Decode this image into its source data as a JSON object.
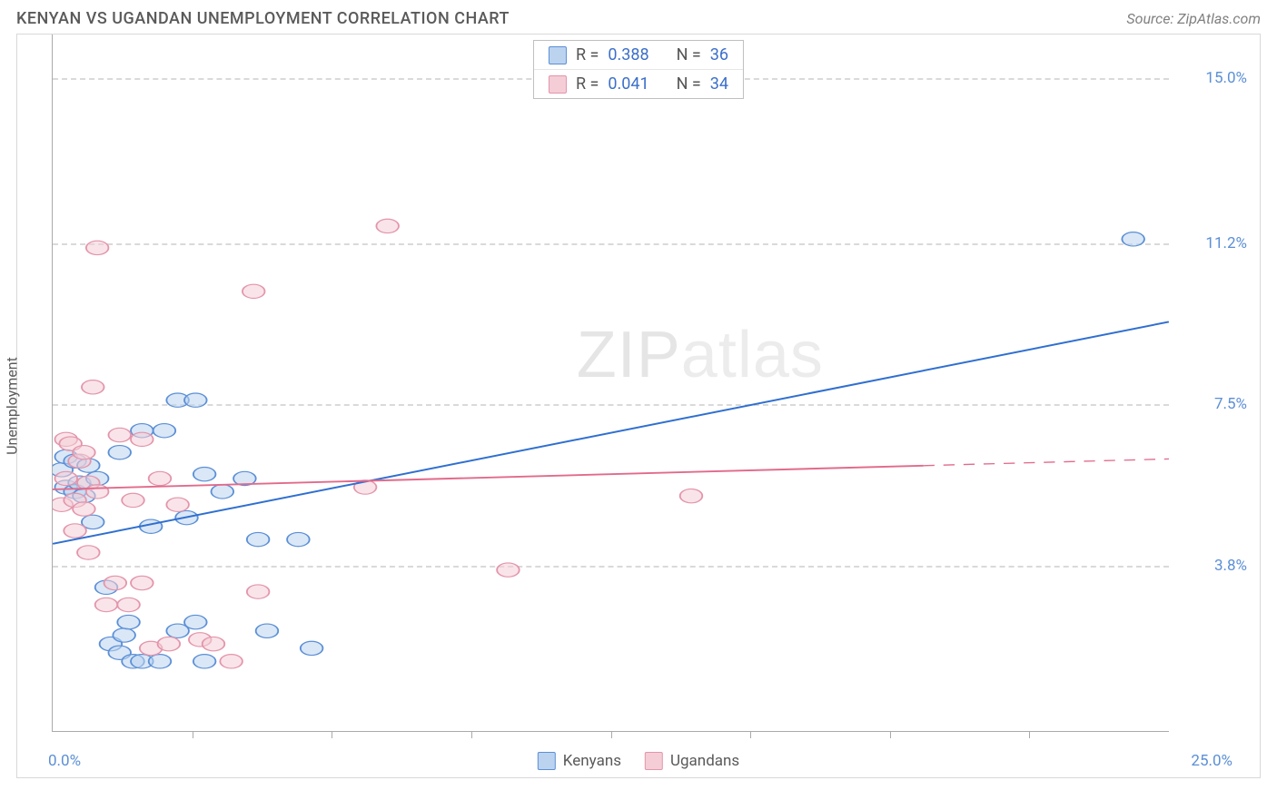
{
  "title": "KENYAN VS UGANDAN UNEMPLOYMENT CORRELATION CHART",
  "source_label": "Source: ZipAtlas.com",
  "ylabel": "Unemployment",
  "watermark_bold": "ZIP",
  "watermark_thin": "atlas",
  "chart": {
    "type": "scatter",
    "xlim": [
      0,
      25
    ],
    "ylim": [
      0,
      16
    ],
    "x_min_label": "0.0%",
    "x_max_label": "25.0%",
    "x_tick_positions_pct": [
      12.5,
      25,
      37.5,
      50,
      62.5,
      75,
      87.5
    ],
    "y_gridlines": [
      {
        "value": 3.8,
        "label": "3.8%"
      },
      {
        "value": 7.5,
        "label": "7.5%"
      },
      {
        "value": 11.2,
        "label": "11.2%"
      },
      {
        "value": 15.0,
        "label": "15.0%"
      }
    ],
    "background_color": "#ffffff",
    "grid_color": "#d9d9d9",
    "axis_color": "#aaaaaa",
    "label_color": "#5b8fd6",
    "marker_radius": 10,
    "marker_opacity": 0.55,
    "line_width": 2.5,
    "series": [
      {
        "name": "Kenyans",
        "color_stroke": "#5b8fd6",
        "color_fill": "#bcd3ef",
        "line_color": "#2f6fd0",
        "R": "0.388",
        "N": "36",
        "trend": {
          "x1": 0,
          "y1": 4.3,
          "x2": 25,
          "y2": 9.4,
          "solid_to_x": 25
        },
        "points": [
          [
            0.2,
            6.0
          ],
          [
            0.3,
            5.6
          ],
          [
            0.3,
            6.3
          ],
          [
            0.5,
            5.5
          ],
          [
            0.5,
            6.2
          ],
          [
            0.6,
            5.7
          ],
          [
            0.7,
            5.4
          ],
          [
            0.8,
            6.1
          ],
          [
            0.9,
            4.8
          ],
          [
            1.0,
            5.8
          ],
          [
            1.2,
            3.3
          ],
          [
            1.3,
            2.0
          ],
          [
            1.5,
            6.4
          ],
          [
            1.5,
            1.8
          ],
          [
            1.6,
            2.2
          ],
          [
            1.7,
            2.5
          ],
          [
            1.8,
            1.6
          ],
          [
            2.0,
            6.9
          ],
          [
            2.0,
            1.6
          ],
          [
            2.2,
            4.7
          ],
          [
            2.4,
            1.6
          ],
          [
            2.5,
            6.9
          ],
          [
            2.8,
            7.6
          ],
          [
            2.8,
            2.3
          ],
          [
            3.0,
            4.9
          ],
          [
            3.2,
            7.6
          ],
          [
            3.2,
            2.5
          ],
          [
            3.4,
            1.6
          ],
          [
            3.4,
            5.9
          ],
          [
            3.8,
            5.5
          ],
          [
            4.3,
            5.8
          ],
          [
            4.6,
            4.4
          ],
          [
            4.8,
            2.3
          ],
          [
            5.5,
            4.4
          ],
          [
            5.8,
            1.9
          ],
          [
            24.2,
            11.3
          ]
        ]
      },
      {
        "name": "Ugandans",
        "color_stroke": "#e395ab",
        "color_fill": "#f4cdd7",
        "line_color": "#e26a8b",
        "R": "0.041",
        "N": "34",
        "trend": {
          "x1": 0,
          "y1": 5.55,
          "x2": 25,
          "y2": 6.25,
          "solid_to_x": 19.5
        },
        "points": [
          [
            0.2,
            5.2
          ],
          [
            0.3,
            6.7
          ],
          [
            0.3,
            5.8
          ],
          [
            0.4,
            6.6
          ],
          [
            0.5,
            5.3
          ],
          [
            0.5,
            4.6
          ],
          [
            0.6,
            6.2
          ],
          [
            0.7,
            5.1
          ],
          [
            0.7,
            6.4
          ],
          [
            0.8,
            5.7
          ],
          [
            0.8,
            4.1
          ],
          [
            0.9,
            7.9
          ],
          [
            1.0,
            5.5
          ],
          [
            1.0,
            11.1
          ],
          [
            1.2,
            2.9
          ],
          [
            1.4,
            3.4
          ],
          [
            1.5,
            6.8
          ],
          [
            1.7,
            2.9
          ],
          [
            1.8,
            5.3
          ],
          [
            2.0,
            6.7
          ],
          [
            2.0,
            3.4
          ],
          [
            2.2,
            1.9
          ],
          [
            2.4,
            5.8
          ],
          [
            2.6,
            2.0
          ],
          [
            2.8,
            5.2
          ],
          [
            3.3,
            2.1
          ],
          [
            3.6,
            2.0
          ],
          [
            4.0,
            1.6
          ],
          [
            4.5,
            10.1
          ],
          [
            4.6,
            3.2
          ],
          [
            7.0,
            5.6
          ],
          [
            7.5,
            11.6
          ],
          [
            10.2,
            3.7
          ],
          [
            14.3,
            5.4
          ]
        ]
      }
    ]
  },
  "legend_top": {
    "r_label": "R =",
    "n_label": "N ="
  },
  "legend_bottom": [
    {
      "label": "Kenyans",
      "stroke": "#5b8fd6",
      "fill": "#bcd3ef"
    },
    {
      "label": "Ugandans",
      "stroke": "#e395ab",
      "fill": "#f4cdd7"
    }
  ]
}
